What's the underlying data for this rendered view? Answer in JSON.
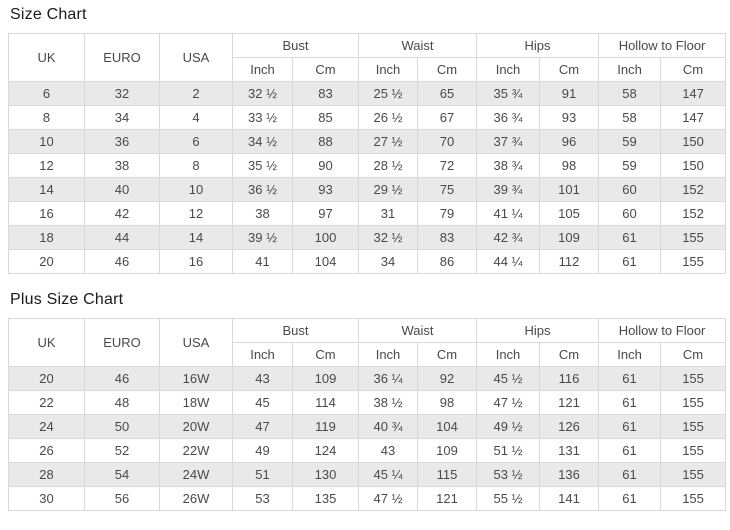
{
  "colors": {
    "page_bg": "#ffffff",
    "border": "#d9d9d9",
    "row_alt_bg": "#e9e9e9",
    "cell_text": "#494949",
    "title_text": "#1a1a1a"
  },
  "chart_data": [
    {
      "type": "table",
      "title": "Size Chart",
      "column_headers": {
        "uk": "UK",
        "euro": "EURO",
        "usa": "USA",
        "groups": [
          "Bust",
          "Waist",
          "Hips",
          "Hollow to Floor"
        ],
        "unit_subheaders": [
          "Inch",
          "Cm"
        ]
      },
      "rows": [
        [
          "6",
          "32",
          "2",
          "32 ½",
          "83",
          "25 ½",
          "65",
          "35 ¾",
          "91",
          "58",
          "147"
        ],
        [
          "8",
          "34",
          "4",
          "33 ½",
          "85",
          "26 ½",
          "67",
          "36 ¾",
          "93",
          "58",
          "147"
        ],
        [
          "10",
          "36",
          "6",
          "34 ½",
          "88",
          "27 ½",
          "70",
          "37 ¾",
          "96",
          "59",
          "150"
        ],
        [
          "12",
          "38",
          "8",
          "35 ½",
          "90",
          "28 ½",
          "72",
          "38 ¾",
          "98",
          "59",
          "150"
        ],
        [
          "14",
          "40",
          "10",
          "36 ½",
          "93",
          "29 ½",
          "75",
          "39 ¾",
          "101",
          "60",
          "152"
        ],
        [
          "16",
          "42",
          "12",
          "38",
          "97",
          "31",
          "79",
          "41 ¼",
          "105",
          "60",
          "152"
        ],
        [
          "18",
          "44",
          "14",
          "39 ½",
          "100",
          "32 ½",
          "83",
          "42 ¾",
          "109",
          "61",
          "155"
        ],
        [
          "20",
          "46",
          "16",
          "41",
          "104",
          "34",
          "86",
          "44 ¼",
          "112",
          "61",
          "155"
        ]
      ]
    },
    {
      "type": "table",
      "title": "Plus Size Chart",
      "column_headers": {
        "uk": "UK",
        "euro": "EURO",
        "usa": "USA",
        "groups": [
          "Bust",
          "Waist",
          "Hips",
          "Hollow to Floor"
        ],
        "unit_subheaders": [
          "Inch",
          "Cm"
        ]
      },
      "rows": [
        [
          "20",
          "46",
          "16W",
          "43",
          "109",
          "36 ¼",
          "92",
          "45 ½",
          "116",
          "61",
          "155"
        ],
        [
          "22",
          "48",
          "18W",
          "45",
          "114",
          "38 ½",
          "98",
          "47 ½",
          "121",
          "61",
          "155"
        ],
        [
          "24",
          "50",
          "20W",
          "47",
          "119",
          "40 ¾",
          "104",
          "49 ½",
          "126",
          "61",
          "155"
        ],
        [
          "26",
          "52",
          "22W",
          "49",
          "124",
          "43",
          "109",
          "51 ½",
          "131",
          "61",
          "155"
        ],
        [
          "28",
          "54",
          "24W",
          "51",
          "130",
          "45 ¼",
          "115",
          "53 ½",
          "136",
          "61",
          "155"
        ],
        [
          "30",
          "56",
          "26W",
          "53",
          "135",
          "47 ½",
          "121",
          "55 ½",
          "141",
          "61",
          "155"
        ]
      ]
    }
  ]
}
